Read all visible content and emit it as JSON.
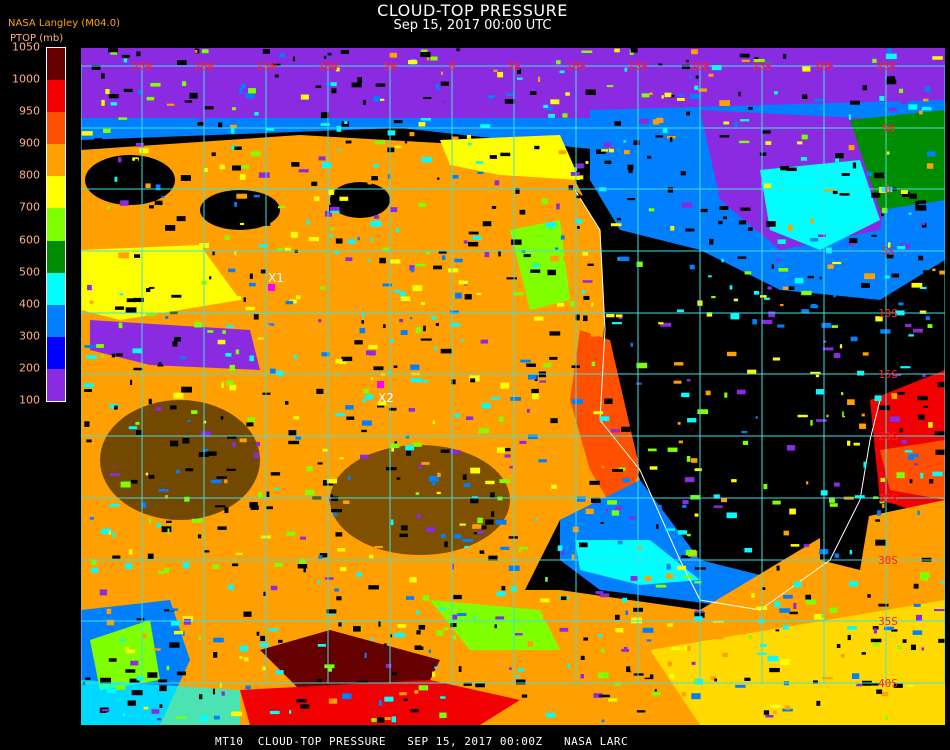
{
  "header": {
    "title": "CLOUD-TOP PRESSURE",
    "subtitle": "Sep 15, 2017 00:00 UTC",
    "source_label": "NASA Langley (M04.0)"
  },
  "legend": {
    "unit_label": "PTOP (mb)",
    "ticks": [
      "1050",
      "1000",
      "950",
      "900",
      "800",
      "700",
      "600",
      "500",
      "400",
      "300",
      "200",
      "100"
    ],
    "colors": [
      "#640000",
      "#f00000",
      "#ff5000",
      "#ffa000",
      "#ffff00",
      "#80ff00",
      "#008c00",
      "#00ffff",
      "#0080ff",
      "#0000ff",
      "#8a2be2"
    ]
  },
  "map": {
    "grid_color": "#40e0e0",
    "label_color": "#ff2020",
    "lon_labels": [
      "25W",
      "20W",
      "15W",
      "10W",
      "5W",
      "0",
      "5E",
      "10E",
      "15E",
      "20E",
      "25E",
      "30E",
      "35E"
    ],
    "lat_labels": [
      "5N",
      "0",
      "5S",
      "10S",
      "15S",
      "20S",
      "25S",
      "30S",
      "35S",
      "40S"
    ],
    "markers": [
      {
        "label": "X1",
        "color": "#ff00ff"
      },
      {
        "label": "X2",
        "color": "#ff00ff"
      }
    ]
  },
  "caption": "MT10  CLOUD-TOP PRESSURE   SEP 15, 2017 00:00Z   NASA LARC"
}
